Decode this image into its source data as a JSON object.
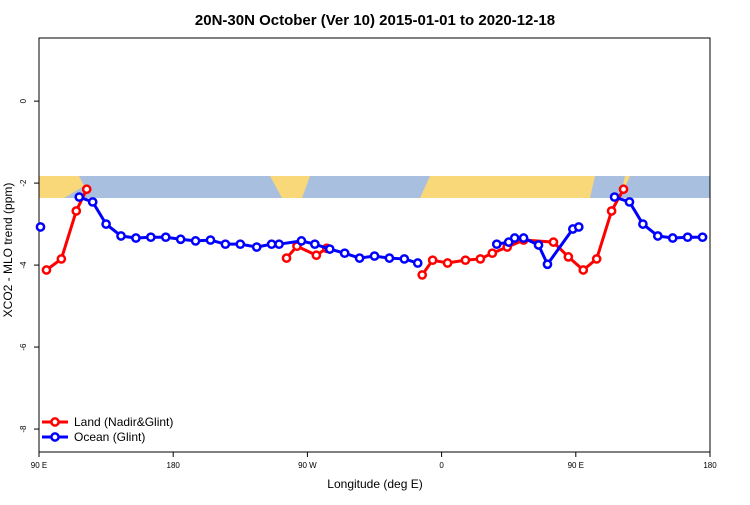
{
  "chart_data": {
    "type": "line",
    "title": "20N-30N October (Ver 10)   2015-01-01 to 2020-12-18",
    "x_label": "Longitude (deg E)",
    "y_label": "XCO2 - MLO trend (ppm)",
    "xlim": [
      90,
      540
    ],
    "ylim": [
      -8.56,
      1.54
    ],
    "xticks": [
      {
        "value": 90,
        "label": "90 E"
      },
      180,
      {
        "value": 270,
        "label": "90 W"
      },
      {
        "value": 360,
        "label": "0"
      },
      {
        "value": 450,
        "label": "90 E"
      },
      {
        "value": 540,
        "label": "180"
      }
    ],
    "yticks": [
      0,
      -2,
      -4,
      -6,
      -8
    ],
    "legend": "bottom-left",
    "series": [
      {
        "name": "Land (Nadir&Glint)",
        "color": "#ff0000",
        "x": [
          95,
          105,
          115,
          122,
          130,
          256,
          263,
          276,
          283,
          300,
          347,
          354,
          364,
          376,
          386,
          394,
          404,
          415,
          435,
          445,
          455,
          464,
          474,
          482
        ],
        "values": [
          -4.12,
          -3.85,
          -2.68,
          -2.15,
          null,
          -3.83,
          -3.54,
          -3.76,
          -3.59,
          null,
          -4.24,
          -3.88,
          -3.95,
          -3.88,
          -3.85,
          -3.71,
          -3.56,
          -3.39,
          -3.44,
          -3.8,
          -4.12,
          -3.85,
          -2.68,
          -2.15
        ]
      },
      {
        "name": "Ocean (Glint)",
        "color": "#0000ff",
        "x": [
          91,
          104,
          117,
          126,
          135,
          145,
          155,
          165,
          175,
          185,
          195,
          205,
          215,
          225,
          236,
          246,
          251,
          266,
          275,
          285,
          295,
          305,
          315,
          325,
          335,
          344,
          370,
          397,
          405,
          409,
          415,
          425,
          431,
          448,
          452,
          464,
          476,
          486,
          495,
          505,
          515,
          525,
          535
        ],
        "values": [
          -3.07,
          null,
          -2.34,
          -2.46,
          -3.0,
          -3.29,
          -3.34,
          -3.32,
          -3.32,
          -3.37,
          -3.41,
          -3.39,
          -3.49,
          -3.49,
          -3.56,
          -3.49,
          -3.49,
          -3.41,
          -3.49,
          -3.61,
          -3.71,
          -3.83,
          -3.78,
          -3.83,
          -3.85,
          -3.95,
          null,
          -3.49,
          -3.44,
          -3.34,
          -3.34,
          -3.51,
          -3.98,
          -3.12,
          -3.07,
          null,
          -2.34,
          -2.46,
          -3.0,
          -3.29,
          -3.34,
          -3.32,
          -3.32
        ]
      }
    ]
  }
}
